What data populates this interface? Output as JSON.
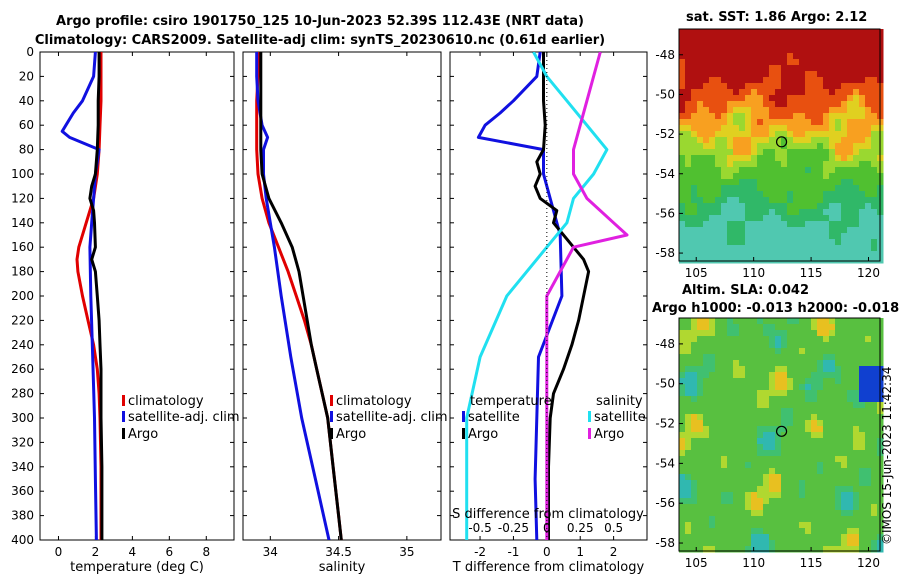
{
  "header": {
    "line1": "Argo profile: csiro 1901750_125 10-Jun-2023 52.39S 112.43E (NRT data)",
    "line2": "Climatology: CARS2009. Satellite-adj clim: synTS_20230610.nc (0.61d earlier)"
  },
  "sst_map": {
    "title": "sat. SST: 1.86 Argo: 2.12"
  },
  "sla_map": {
    "title1": "Altim. SLA: 0.042",
    "title2": "Argo h1000: -0.013 h2000: -0.018"
  },
  "stamp": "©IMOS 15-Jun-2023 11:42:34",
  "colors": {
    "climatology": "#e00000",
    "satellite": "#1010e0",
    "argo": "#000000",
    "sat_salinity": "#20e0f0",
    "argo_salinity": "#e020e0"
  },
  "chart_data": [
    {
      "type": "line",
      "id": "temperature",
      "xlabel": "temperature (deg C)",
      "xlim": [
        -1,
        9.5
      ],
      "ylim": [
        400,
        0
      ],
      "xticks": [
        0,
        2,
        4,
        6,
        8
      ],
      "yticks": [
        0,
        20,
        40,
        60,
        80,
        100,
        120,
        140,
        160,
        180,
        200,
        220,
        240,
        260,
        280,
        300,
        320,
        340,
        360,
        380,
        400
      ],
      "legend": [
        "climatology",
        "satellite-adj. clim",
        "Argo"
      ],
      "series": [
        {
          "name": "climatology",
          "color": "#e00000",
          "depth": [
            0,
            20,
            40,
            60,
            80,
            100,
            120,
            140,
            150,
            160,
            170,
            180,
            200,
            220,
            240,
            260,
            280,
            300,
            340,
            380,
            400
          ],
          "values": [
            2.3,
            2.3,
            2.3,
            2.25,
            2.2,
            2.1,
            1.9,
            1.5,
            1.3,
            1.1,
            1.0,
            1.05,
            1.3,
            1.6,
            1.9,
            2.1,
            2.2,
            2.25,
            2.3,
            2.3,
            2.3
          ]
        },
        {
          "name": "satellite-adj. clim",
          "color": "#1010e0",
          "depth": [
            0,
            20,
            40,
            50,
            60,
            65,
            70,
            80,
            90,
            100,
            120,
            140,
            160,
            200,
            250,
            300,
            350,
            400
          ],
          "values": [
            2.0,
            1.9,
            1.3,
            0.8,
            0.4,
            0.2,
            0.6,
            2.2,
            2.1,
            2.0,
            1.9,
            1.8,
            1.7,
            1.75,
            1.85,
            1.95,
            2.0,
            2.05
          ]
        },
        {
          "name": "Argo",
          "color": "#000000",
          "depth": [
            0,
            20,
            40,
            60,
            80,
            100,
            110,
            120,
            130,
            140,
            160,
            170,
            180,
            200,
            220,
            240,
            260,
            300,
            340,
            380,
            400
          ],
          "values": [
            2.2,
            2.2,
            2.15,
            2.15,
            2.1,
            2.0,
            1.8,
            1.7,
            1.9,
            1.95,
            2.0,
            1.8,
            2.0,
            2.1,
            2.2,
            2.25,
            2.3,
            2.3,
            2.35,
            2.35,
            2.35
          ]
        }
      ]
    },
    {
      "type": "line",
      "id": "salinity",
      "xlabel": "salinity",
      "xlim": [
        33.8,
        35.25
      ],
      "ylim": [
        400,
        0
      ],
      "xticks": [
        34,
        34.5,
        35
      ],
      "legend": [
        "climatology",
        "satellite-adj. clim",
        "Argo"
      ],
      "series": [
        {
          "name": "climatology",
          "color": "#e00000",
          "depth": [
            0,
            20,
            40,
            60,
            80,
            100,
            120,
            140,
            160,
            180,
            200,
            220,
            240,
            260,
            280,
            300,
            340,
            380,
            400
          ],
          "values": [
            33.92,
            33.91,
            33.9,
            33.9,
            33.9,
            33.91,
            33.94,
            33.99,
            34.06,
            34.13,
            34.19,
            34.25,
            34.3,
            34.34,
            34.38,
            34.42,
            34.46,
            34.5,
            34.52
          ]
        },
        {
          "name": "satellite-adj. clim",
          "color": "#1010e0",
          "depth": [
            0,
            20,
            40,
            60,
            70,
            80,
            100,
            120,
            140,
            160,
            200,
            250,
            300,
            350,
            400
          ],
          "values": [
            33.9,
            33.9,
            33.91,
            33.94,
            33.98,
            33.95,
            33.95,
            33.97,
            34.0,
            34.03,
            34.08,
            34.15,
            34.23,
            34.33,
            34.43
          ]
        },
        {
          "name": "Argo",
          "color": "#000000",
          "depth": [
            0,
            20,
            40,
            60,
            80,
            100,
            120,
            140,
            160,
            180,
            200,
            220,
            240,
            260,
            280,
            300,
            340,
            380,
            400
          ],
          "values": [
            33.93,
            33.93,
            33.93,
            33.93,
            33.93,
            33.94,
            33.99,
            34.08,
            34.16,
            34.21,
            34.24,
            34.27,
            34.3,
            34.34,
            34.38,
            34.42,
            34.46,
            34.5,
            34.52
          ]
        }
      ]
    },
    {
      "type": "line",
      "id": "difference",
      "xlabel": "T difference from climatology",
      "xlabel2": "S difference from climatology",
      "xlim": [
        -2.9,
        3.0
      ],
      "ylim": [
        400,
        0
      ],
      "xticks": [
        -2,
        -1,
        0,
        1,
        2
      ],
      "xticks_s": [
        -0.5,
        -0.25,
        0,
        0.25,
        0.5
      ],
      "legend_heads": [
        "temperature",
        "salinity"
      ],
      "legend": [
        "satellite",
        "Argo",
        "satellite",
        "Argo"
      ],
      "series": [
        {
          "name": "T satellite",
          "color": "#1010e0",
          "depth": [
            0,
            20,
            40,
            50,
            60,
            70,
            80,
            90,
            100,
            150,
            200,
            250,
            300,
            350,
            400
          ],
          "values": [
            -0.2,
            -0.3,
            -1.0,
            -1.4,
            -1.85,
            -2.05,
            -0.1,
            -0.1,
            -0.1,
            0.4,
            0.45,
            -0.25,
            -0.3,
            -0.35,
            -0.3
          ]
        },
        {
          "name": "T Argo",
          "color": "#000000",
          "depth": [
            0,
            20,
            40,
            60,
            80,
            90,
            100,
            110,
            120,
            130,
            140,
            160,
            170,
            180,
            200,
            220,
            240,
            260,
            280,
            300,
            340,
            380,
            400
          ],
          "values": [
            -0.1,
            -0.1,
            -0.1,
            -0.05,
            -0.1,
            -0.3,
            -0.2,
            -0.35,
            -0.2,
            0.3,
            0.2,
            0.8,
            1.1,
            1.25,
            1.1,
            0.95,
            0.75,
            0.5,
            0.2,
            0.1,
            0.05,
            0.05,
            0.05
          ]
        },
        {
          "name": "S satellite",
          "color": "#20e0f0",
          "depth": [
            0,
            20,
            40,
            60,
            80,
            100,
            120,
            140,
            160,
            200,
            250,
            300,
            350,
            400
          ],
          "values": [
            -0.1,
            0.0,
            0.15,
            0.3,
            0.45,
            0.35,
            0.2,
            0.15,
            0.0,
            -0.3,
            -0.5,
            -0.6,
            -0.6,
            -0.6
          ]
        },
        {
          "name": "S Argo",
          "color": "#e020e0",
          "depth": [
            0,
            20,
            40,
            60,
            80,
            100,
            120,
            140,
            150,
            160,
            200,
            250,
            300,
            350,
            400
          ],
          "values": [
            0.4,
            0.35,
            0.3,
            0.25,
            0.2,
            0.2,
            0.3,
            0.5,
            0.6,
            0.2,
            0.0,
            0.0,
            0.0,
            0.0,
            0.0
          ]
        }
      ]
    },
    {
      "type": "heatmap",
      "id": "sst_map",
      "xticks": [
        105,
        110,
        115,
        120
      ],
      "yticks": [
        -48,
        -50,
        -52,
        -54,
        -56,
        -58
      ],
      "xlim": [
        103.5,
        121
      ],
      "ylim": [
        -58.4,
        -46.7
      ],
      "argo_marker": [
        112.43,
        -52.39
      ]
    },
    {
      "type": "heatmap",
      "id": "sla_map",
      "xticks": [
        105,
        110,
        115,
        120
      ],
      "yticks": [
        -48,
        -50,
        -52,
        -54,
        -56,
        -58
      ],
      "xlim": [
        103.5,
        121
      ],
      "ylim": [
        -58.4,
        -46.7
      ],
      "argo_marker": [
        112.43,
        -52.39
      ]
    }
  ]
}
